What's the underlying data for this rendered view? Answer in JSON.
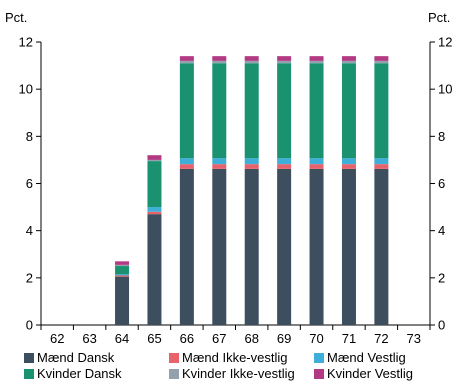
{
  "chart_data": {
    "type": "bar",
    "stacked": true,
    "title": "",
    "xlabel": "",
    "ylabel": "Pct.",
    "ylabel_right": "Pct.",
    "ylim": [
      0,
      12
    ],
    "yticks": [
      0,
      2,
      4,
      6,
      8,
      10,
      12
    ],
    "categories": [
      "62",
      "63",
      "64",
      "65",
      "66",
      "67",
      "68",
      "69",
      "70",
      "71",
      "72",
      "73"
    ],
    "grid": false,
    "legend_position": "bottom",
    "series": [
      {
        "name": "Mænd Dansk",
        "color": "#3d4f5e",
        "values": [
          0,
          0,
          2.05,
          4.7,
          6.62,
          6.62,
          6.62,
          6.62,
          6.62,
          6.62,
          6.62,
          0
        ]
      },
      {
        "name": "Mænd Ikke-vestlig",
        "color": "#e8626b",
        "values": [
          0,
          0,
          0.05,
          0.1,
          0.2,
          0.2,
          0.2,
          0.2,
          0.2,
          0.2,
          0.2,
          0
        ]
      },
      {
        "name": "Mænd Vestlig",
        "color": "#3faed9",
        "values": [
          0,
          0,
          0.05,
          0.2,
          0.25,
          0.25,
          0.25,
          0.25,
          0.25,
          0.25,
          0.25,
          0
        ]
      },
      {
        "name": "Kvinder Dansk",
        "color": "#1a9270",
        "values": [
          0,
          0,
          0.35,
          1.95,
          4.03,
          4.03,
          4.03,
          4.03,
          4.03,
          4.03,
          4.03,
          0
        ]
      },
      {
        "name": "Kvinder Ikke-vestlig",
        "color": "#93a0ad",
        "values": [
          0,
          0,
          0.05,
          0.05,
          0.1,
          0.1,
          0.1,
          0.1,
          0.1,
          0.1,
          0.1,
          0
        ]
      },
      {
        "name": "Kvinder Vestlig",
        "color": "#b23a83",
        "values": [
          0,
          0,
          0.15,
          0.2,
          0.2,
          0.2,
          0.2,
          0.2,
          0.2,
          0.2,
          0.2,
          0
        ]
      }
    ]
  }
}
